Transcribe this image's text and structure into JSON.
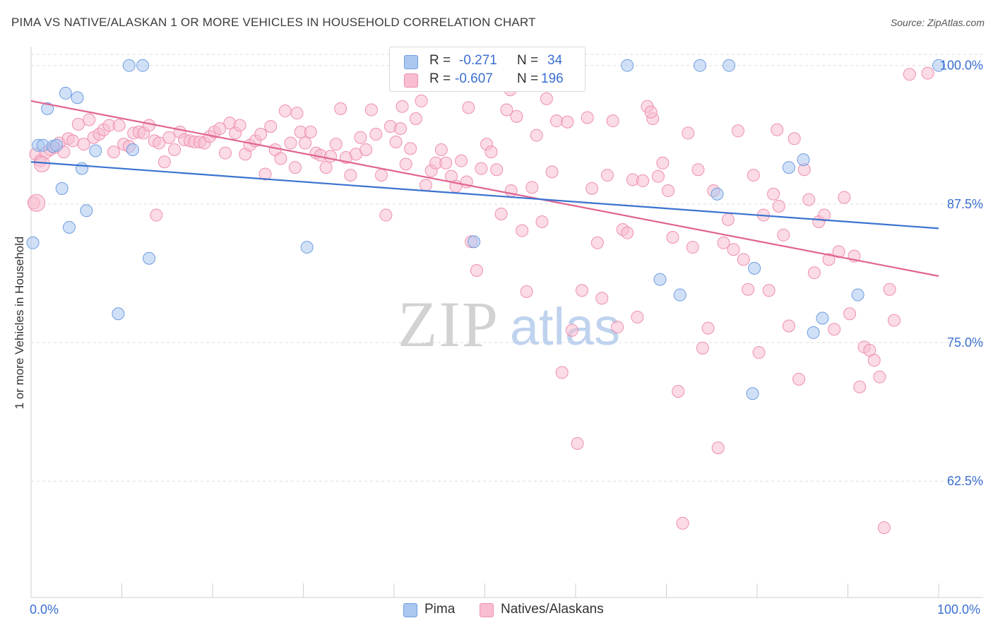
{
  "title": "PIMA VS NATIVE/ALASKAN 1 OR MORE VEHICLES IN HOUSEHOLD CORRELATION CHART",
  "source": "Source: ZipAtlas.com",
  "watermark": {
    "zip": "ZIP",
    "atlas": "atlas"
  },
  "legend": {
    "r_label": "R =",
    "n_label": "N =",
    "rows": [
      {
        "r": "-0.271",
        "n": "34",
        "fill": "#aac7f0",
        "stroke": "#6f9de0"
      },
      {
        "r": "-0.607",
        "n": "196",
        "fill": "#f8bdd0",
        "stroke": "#ee8fb0"
      }
    ]
  },
  "bottom_legend": [
    {
      "name": "Pima",
      "fill": "#aac7f0",
      "stroke": "#6f9de0"
    },
    {
      "name": "Natives/Alaskans",
      "fill": "#f8bdd0",
      "stroke": "#ee8fb0"
    }
  ],
  "chart_data": {
    "type": "scatter",
    "title": "PIMA VS NATIVE/ALASKAN 1 OR MORE VEHICLES IN HOUSEHOLD CORRELATION CHART",
    "xlabel": "",
    "ylabel": "1 or more Vehicles in Household",
    "xlim": [
      0,
      100
    ],
    "ylim": [
      52,
      101
    ],
    "x_tick_labels": [
      "0.0%",
      "100.0%"
    ],
    "y_ticks": [
      62.5,
      75.0,
      87.5,
      100.0
    ],
    "y_tick_labels": [
      "62.5%",
      "75.0%",
      "87.5%",
      "100.0%"
    ],
    "grid": true,
    "colors": {
      "pima": "#6f9de0",
      "pima_line": "#3a73d0",
      "natives": "#ee8fb0",
      "natives_line": "#e0648f",
      "tick_text": "#3b6fd1"
    },
    "series": [
      {
        "name": "Pima",
        "trend": {
          "x": [
            0,
            100
          ],
          "y": [
            91.3,
            85.3
          ]
        },
        "points": [
          [
            0.2,
            84.0
          ],
          [
            0.8,
            92.8
          ],
          [
            1.3,
            92.8
          ],
          [
            1.8,
            96.1
          ],
          [
            2.4,
            92.7
          ],
          [
            2.8,
            92.8
          ],
          [
            3.4,
            88.9
          ],
          [
            3.8,
            97.5
          ],
          [
            4.2,
            85.4
          ],
          [
            5.1,
            97.1
          ],
          [
            5.6,
            90.7
          ],
          [
            6.1,
            86.9
          ],
          [
            7.1,
            92.3
          ],
          [
            9.6,
            77.6
          ],
          [
            10.8,
            100.0
          ],
          [
            12.3,
            100.0
          ],
          [
            11.2,
            92.4
          ],
          [
            13.0,
            82.6
          ],
          [
            30.4,
            83.6
          ],
          [
            48.8,
            84.1
          ],
          [
            65.7,
            100.0
          ],
          [
            69.3,
            80.7
          ],
          [
            71.5,
            79.3
          ],
          [
            73.7,
            100.0
          ],
          [
            76.9,
            100.0
          ],
          [
            75.6,
            88.4
          ],
          [
            79.7,
            81.7
          ],
          [
            79.5,
            70.4
          ],
          [
            83.5,
            90.8
          ],
          [
            85.1,
            91.5
          ],
          [
            86.2,
            75.9
          ],
          [
            87.2,
            77.2
          ],
          [
            91.1,
            79.3
          ],
          [
            100.0,
            100.0
          ]
        ]
      },
      {
        "name": "Natives/Alaskans",
        "trend": {
          "x": [
            0,
            100
          ],
          "y": [
            96.8,
            81.0
          ]
        },
        "points": [
          [
            0.3,
            87.6
          ],
          [
            0.5,
            92.0
          ],
          [
            1.0,
            91.4
          ],
          [
            1.6,
            92.1
          ],
          [
            2.1,
            92.4
          ],
          [
            2.6,
            92.6
          ],
          [
            3.1,
            93.0
          ],
          [
            3.6,
            92.2
          ],
          [
            4.1,
            93.4
          ],
          [
            4.6,
            93.2
          ],
          [
            5.2,
            94.7
          ],
          [
            5.8,
            92.9
          ],
          [
            6.4,
            95.1
          ],
          [
            6.9,
            93.5
          ],
          [
            7.5,
            93.8
          ],
          [
            8.0,
            94.2
          ],
          [
            8.6,
            94.6
          ],
          [
            9.1,
            92.2
          ],
          [
            9.7,
            94.6
          ],
          [
            10.2,
            92.9
          ],
          [
            10.8,
            92.7
          ],
          [
            11.3,
            93.9
          ],
          [
            11.9,
            94.0
          ],
          [
            12.4,
            93.9
          ],
          [
            13.0,
            94.6
          ],
          [
            13.6,
            93.2
          ],
          [
            14.1,
            93.0
          ],
          [
            14.7,
            91.3
          ],
          [
            15.2,
            93.5
          ],
          [
            15.8,
            92.4
          ],
          [
            16.4,
            94.0
          ],
          [
            16.9,
            93.3
          ],
          [
            17.5,
            93.2
          ],
          [
            18.0,
            93.1
          ],
          [
            18.6,
            93.1
          ],
          [
            19.1,
            93.0
          ],
          [
            19.7,
            93.6
          ],
          [
            20.2,
            94.0
          ],
          [
            20.8,
            94.3
          ],
          [
            21.4,
            92.1
          ],
          [
            21.9,
            94.8
          ],
          [
            22.5,
            93.9
          ],
          [
            23.0,
            94.6
          ],
          [
            23.6,
            92.0
          ],
          [
            24.1,
            92.8
          ],
          [
            24.7,
            93.2
          ],
          [
            25.3,
            93.8
          ],
          [
            25.8,
            90.2
          ],
          [
            26.4,
            94.5
          ],
          [
            26.9,
            92.4
          ],
          [
            27.5,
            91.6
          ],
          [
            28.0,
            95.9
          ],
          [
            28.6,
            93.0
          ],
          [
            29.1,
            90.8
          ],
          [
            29.7,
            94.0
          ],
          [
            30.2,
            93.0
          ],
          [
            30.8,
            94.0
          ],
          [
            31.4,
            92.1
          ],
          [
            31.9,
            91.9
          ],
          [
            32.5,
            90.8
          ],
          [
            33.0,
            91.8
          ],
          [
            33.6,
            92.9
          ],
          [
            34.1,
            96.1
          ],
          [
            34.7,
            91.7
          ],
          [
            35.2,
            90.1
          ],
          [
            35.8,
            92.0
          ],
          [
            36.3,
            93.5
          ],
          [
            36.9,
            92.4
          ],
          [
            37.5,
            96.0
          ],
          [
            38.0,
            93.8
          ],
          [
            38.6,
            90.1
          ],
          [
            39.1,
            86.5
          ],
          [
            39.6,
            94.5
          ],
          [
            40.2,
            93.1
          ],
          [
            40.7,
            94.3
          ],
          [
            41.3,
            91.1
          ],
          [
            41.8,
            92.5
          ],
          [
            42.4,
            95.2
          ],
          [
            43.0,
            96.8
          ],
          [
            43.5,
            89.2
          ],
          [
            44.1,
            90.5
          ],
          [
            44.6,
            91.2
          ],
          [
            45.2,
            92.4
          ],
          [
            45.7,
            91.2
          ],
          [
            46.3,
            90.0
          ],
          [
            46.8,
            89.1
          ],
          [
            47.4,
            91.4
          ],
          [
            48.0,
            89.5
          ],
          [
            48.5,
            84.1
          ],
          [
            49.1,
            81.5
          ],
          [
            49.6,
            90.7
          ],
          [
            50.2,
            92.9
          ],
          [
            50.7,
            92.2
          ],
          [
            51.3,
            90.6
          ],
          [
            51.8,
            86.6
          ],
          [
            52.4,
            96.0
          ],
          [
            52.9,
            88.7
          ],
          [
            53.5,
            95.4
          ],
          [
            54.1,
            85.1
          ],
          [
            54.6,
            79.6
          ],
          [
            55.2,
            89.0
          ],
          [
            55.7,
            93.7
          ],
          [
            56.3,
            85.9
          ],
          [
            56.8,
            97.0
          ],
          [
            57.4,
            90.4
          ],
          [
            57.9,
            95.0
          ],
          [
            58.5,
            72.3
          ],
          [
            59.1,
            94.9
          ],
          [
            59.6,
            76.1
          ],
          [
            60.2,
            65.9
          ],
          [
            60.7,
            79.7
          ],
          [
            61.3,
            95.3
          ],
          [
            61.8,
            88.9
          ],
          [
            62.4,
            84.0
          ],
          [
            62.9,
            79.0
          ],
          [
            63.5,
            90.1
          ],
          [
            64.1,
            95.0
          ],
          [
            64.6,
            76.4
          ],
          [
            65.2,
            85.2
          ],
          [
            65.7,
            84.9
          ],
          [
            66.3,
            89.7
          ],
          [
            66.8,
            77.3
          ],
          [
            67.4,
            89.6
          ],
          [
            67.9,
            96.3
          ],
          [
            68.5,
            95.2
          ],
          [
            69.1,
            90.0
          ],
          [
            69.6,
            91.2
          ],
          [
            70.2,
            88.7
          ],
          [
            70.7,
            84.5
          ],
          [
            71.3,
            70.6
          ],
          [
            71.8,
            58.7
          ],
          [
            72.4,
            93.9
          ],
          [
            72.9,
            83.6
          ],
          [
            73.5,
            90.6
          ],
          [
            74.0,
            74.5
          ],
          [
            74.6,
            76.3
          ],
          [
            75.2,
            88.7
          ],
          [
            75.7,
            65.5
          ],
          [
            76.3,
            84.0
          ],
          [
            76.8,
            86.1
          ],
          [
            77.4,
            83.4
          ],
          [
            77.9,
            94.1
          ],
          [
            78.5,
            82.5
          ],
          [
            79.0,
            79.8
          ],
          [
            79.6,
            90.1
          ],
          [
            80.2,
            74.1
          ],
          [
            80.7,
            86.5
          ],
          [
            81.3,
            79.7
          ],
          [
            81.8,
            88.4
          ],
          [
            82.4,
            87.3
          ],
          [
            82.9,
            84.7
          ],
          [
            83.5,
            76.5
          ],
          [
            84.1,
            93.4
          ],
          [
            84.6,
            71.7
          ],
          [
            85.2,
            90.6
          ],
          [
            85.7,
            87.9
          ],
          [
            86.3,
            81.3
          ],
          [
            86.8,
            85.9
          ],
          [
            87.4,
            86.5
          ],
          [
            87.9,
            82.5
          ],
          [
            88.5,
            76.2
          ],
          [
            89.0,
            83.2
          ],
          [
            89.6,
            88.1
          ],
          [
            90.2,
            77.6
          ],
          [
            90.7,
            82.8
          ],
          [
            91.3,
            71.0
          ],
          [
            91.8,
            74.6
          ],
          [
            92.4,
            74.3
          ],
          [
            92.9,
            73.4
          ],
          [
            93.5,
            71.9
          ],
          [
            94.0,
            58.3
          ],
          [
            94.6,
            79.8
          ],
          [
            95.1,
            77.0
          ],
          [
            96.8,
            99.2
          ],
          [
            98.8,
            99.3
          ],
          [
            48.2,
            96.2
          ],
          [
            13.8,
            86.5
          ],
          [
            29.3,
            95.7
          ],
          [
            40.9,
            96.3
          ],
          [
            50.3,
            99.0
          ],
          [
            82.2,
            94.2
          ],
          [
            68.3,
            95.8
          ],
          [
            52.8,
            97.8
          ],
          [
            54.7,
            99.3
          ]
        ]
      }
    ]
  }
}
